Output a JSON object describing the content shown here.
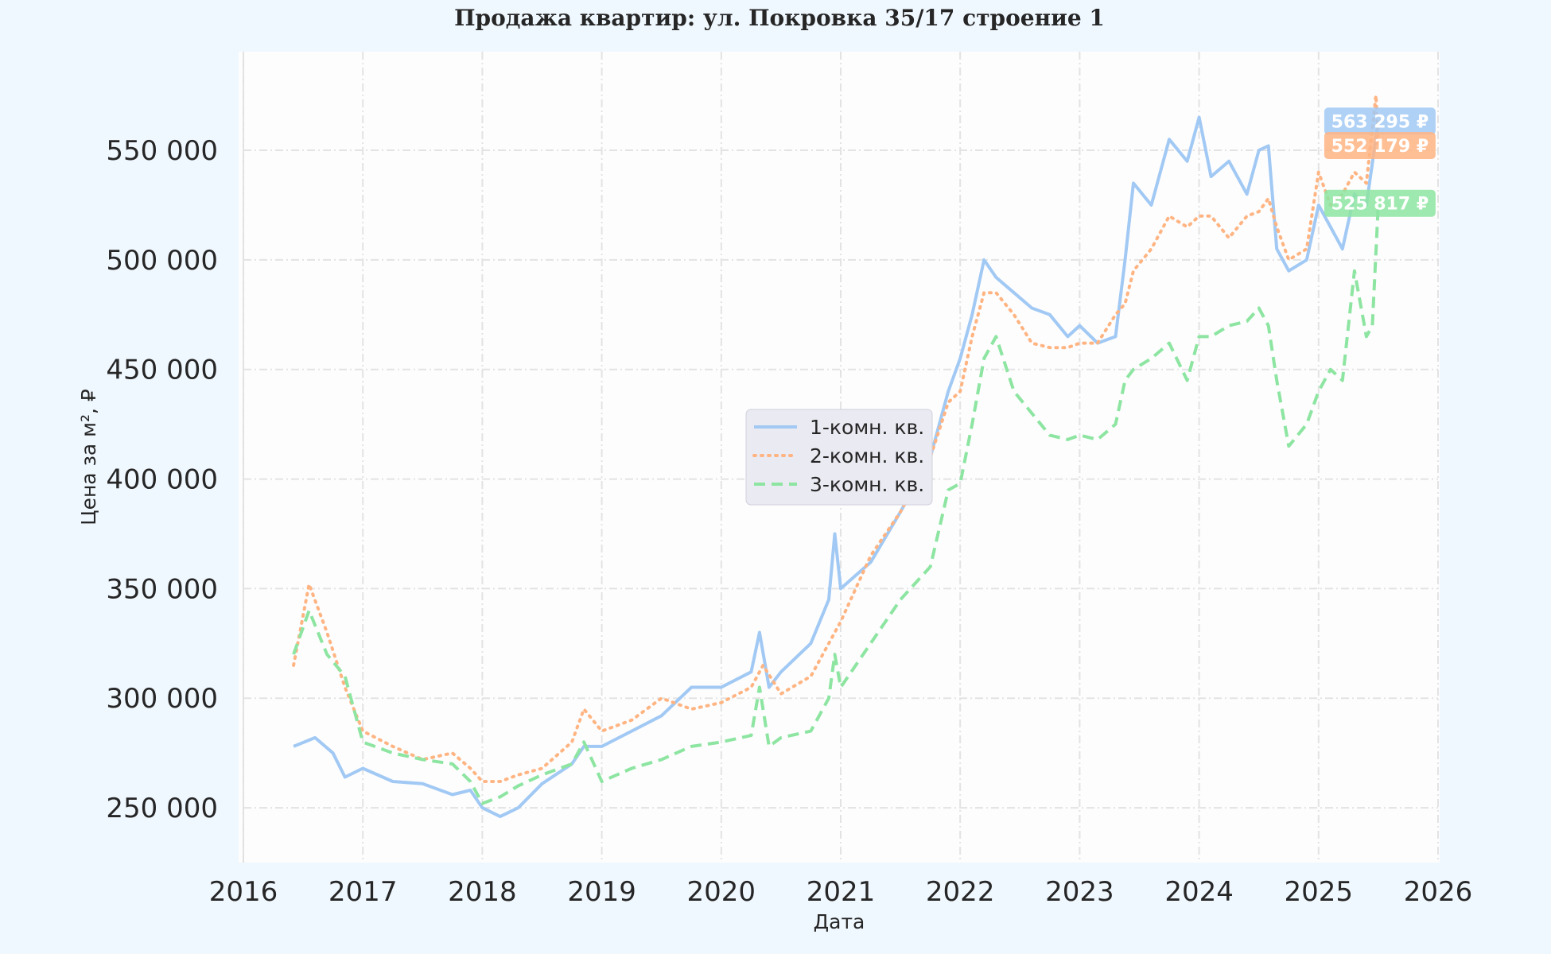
{
  "chart_data": {
    "type": "line",
    "title": "Продажа квартир: ул. Покровка 35/17 строение 1",
    "xlabel": "Дата",
    "ylabel": "Цена за м², ₽",
    "xlim": [
      2016,
      2026
    ],
    "ylim": [
      225000,
      595000
    ],
    "x_ticks": [
      2016,
      2017,
      2018,
      2019,
      2020,
      2021,
      2022,
      2023,
      2024,
      2025,
      2026
    ],
    "x_tick_labels": [
      "2016",
      "2017",
      "2018",
      "2019",
      "2020",
      "2021",
      "2022",
      "2023",
      "2024",
      "2025",
      "2026"
    ],
    "y_ticks": [
      250000,
      300000,
      350000,
      400000,
      450000,
      500000,
      550000
    ],
    "y_tick_labels": [
      "250 000",
      "300 000",
      "350 000",
      "400 000",
      "450 000",
      "500 000",
      "550 000"
    ],
    "grid": true,
    "legend_position": "center",
    "series": [
      {
        "name": "1-комн. кв.",
        "color": "#a1c9f4",
        "dash": "solid",
        "end_label": "563 295 ₽",
        "x": [
          2016.42,
          2016.6,
          2016.75,
          2016.85,
          2017.0,
          2017.25,
          2017.5,
          2017.75,
          2017.9,
          2018.0,
          2018.15,
          2018.3,
          2018.5,
          2018.75,
          2018.85,
          2019.0,
          2019.25,
          2019.5,
          2019.75,
          2020.0,
          2020.25,
          2020.32,
          2020.4,
          2020.5,
          2020.75,
          2020.9,
          2020.95,
          2021.0,
          2021.25,
          2021.5,
          2021.75,
          2021.9,
          2022.0,
          2022.1,
          2022.2,
          2022.3,
          2022.45,
          2022.6,
          2022.75,
          2022.9,
          2023.0,
          2023.15,
          2023.3,
          2023.38,
          2023.45,
          2023.6,
          2023.75,
          2023.9,
          2024.0,
          2024.1,
          2024.25,
          2024.4,
          2024.5,
          2024.58,
          2024.65,
          2024.75,
          2024.9,
          2025.0,
          2025.1,
          2025.2,
          2025.3,
          2025.4,
          2025.5
        ],
        "y": [
          278000,
          282000,
          275000,
          264000,
          268000,
          262000,
          261000,
          256000,
          258000,
          250000,
          246000,
          250000,
          261000,
          270000,
          278000,
          278000,
          285000,
          292000,
          305000,
          305000,
          312000,
          330000,
          305000,
          312000,
          325000,
          345000,
          375000,
          350000,
          362000,
          385000,
          410000,
          440000,
          455000,
          475000,
          500000,
          492000,
          485000,
          478000,
          475000,
          465000,
          470000,
          462000,
          465000,
          500000,
          535000,
          525000,
          555000,
          545000,
          565000,
          538000,
          545000,
          530000,
          550000,
          552000,
          505000,
          495000,
          500000,
          525000,
          515000,
          505000,
          530000,
          525000,
          563295
        ]
      },
      {
        "name": "2-комн. кв.",
        "color": "#ffb482",
        "dash": "dotted",
        "end_label": "552 179 ₽",
        "x": [
          2016.42,
          2016.55,
          2016.7,
          2016.85,
          2017.0,
          2017.25,
          2017.5,
          2017.75,
          2017.9,
          2018.0,
          2018.15,
          2018.3,
          2018.5,
          2018.75,
          2018.85,
          2019.0,
          2019.25,
          2019.5,
          2019.75,
          2020.0,
          2020.25,
          2020.35,
          2020.5,
          2020.75,
          2020.9,
          2021.0,
          2021.25,
          2021.5,
          2021.75,
          2021.9,
          2022.0,
          2022.1,
          2022.2,
          2022.3,
          2022.45,
          2022.6,
          2022.75,
          2022.9,
          2023.0,
          2023.15,
          2023.3,
          2023.38,
          2023.45,
          2023.6,
          2023.75,
          2023.9,
          2024.0,
          2024.1,
          2024.25,
          2024.4,
          2024.5,
          2024.58,
          2024.65,
          2024.75,
          2024.9,
          2025.0,
          2025.1,
          2025.2,
          2025.3,
          2025.4,
          2025.48,
          2025.5
        ],
        "y": [
          315000,
          352000,
          330000,
          305000,
          285000,
          278000,
          272000,
          275000,
          268000,
          262000,
          262000,
          265000,
          268000,
          280000,
          295000,
          285000,
          290000,
          300000,
          295000,
          298000,
          305000,
          315000,
          302000,
          310000,
          325000,
          335000,
          365000,
          385000,
          410000,
          435000,
          440000,
          465000,
          485000,
          485000,
          475000,
          462000,
          460000,
          460000,
          462000,
          462000,
          475000,
          480000,
          495000,
          505000,
          520000,
          515000,
          520000,
          520000,
          510000,
          520000,
          522000,
          528000,
          515000,
          500000,
          505000,
          540000,
          525000,
          530000,
          540000,
          535000,
          575000,
          552179
        ]
      },
      {
        "name": "3-комн. кв.",
        "color": "#8de5a1",
        "dash": "dashed",
        "end_label": "525 817 ₽",
        "x": [
          2016.42,
          2016.55,
          2016.7,
          2016.85,
          2017.0,
          2017.25,
          2017.5,
          2017.75,
          2017.9,
          2018.0,
          2018.15,
          2018.3,
          2018.5,
          2018.75,
          2018.85,
          2019.0,
          2019.25,
          2019.5,
          2019.75,
          2020.0,
          2020.25,
          2020.32,
          2020.4,
          2020.5,
          2020.75,
          2020.9,
          2020.95,
          2021.0,
          2021.25,
          2021.5,
          2021.75,
          2021.9,
          2022.0,
          2022.1,
          2022.2,
          2022.3,
          2022.45,
          2022.6,
          2022.75,
          2022.9,
          2023.0,
          2023.15,
          2023.3,
          2023.38,
          2023.45,
          2023.6,
          2023.75,
          2023.9,
          2024.0,
          2024.1,
          2024.25,
          2024.4,
          2024.5,
          2024.58,
          2024.65,
          2024.75,
          2024.9,
          2025.0,
          2025.1,
          2025.2,
          2025.3,
          2025.4,
          2025.45,
          2025.5
        ],
        "y": [
          320000,
          340000,
          320000,
          310000,
          280000,
          275000,
          272000,
          270000,
          262000,
          252000,
          255000,
          260000,
          265000,
          270000,
          280000,
          262000,
          268000,
          272000,
          278000,
          280000,
          283000,
          305000,
          278000,
          282000,
          285000,
          300000,
          320000,
          305000,
          325000,
          345000,
          360000,
          395000,
          398000,
          425000,
          455000,
          465000,
          440000,
          430000,
          420000,
          418000,
          420000,
          418000,
          425000,
          445000,
          450000,
          455000,
          462000,
          445000,
          465000,
          465000,
          470000,
          472000,
          478000,
          470000,
          445000,
          415000,
          425000,
          440000,
          450000,
          445000,
          495000,
          465000,
          470000,
          525817
        ]
      }
    ]
  }
}
